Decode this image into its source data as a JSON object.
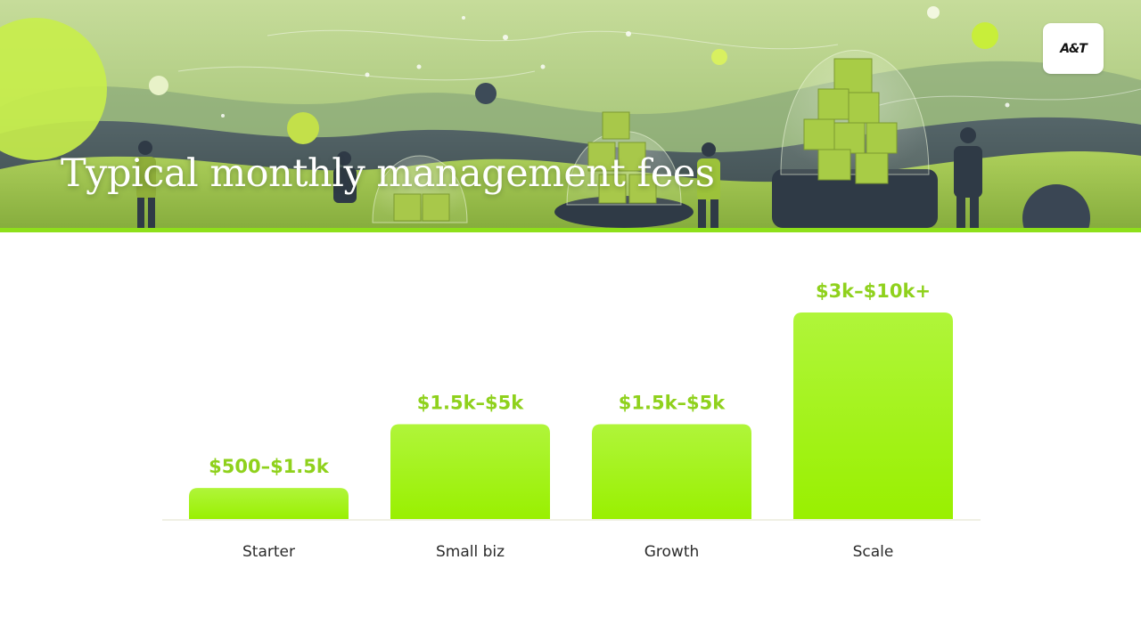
{
  "slide": {
    "title": "Typical monthly management fees",
    "logo_text": "A&T"
  },
  "colors": {
    "accent": "#8ee01a",
    "bar_top": "#b0f53a",
    "bar_bottom": "#99f000",
    "value_text": "#8fd11c"
  },
  "chart_data": {
    "type": "bar",
    "title": "",
    "xlabel": "",
    "ylabel": "",
    "categories": [
      "Starter",
      "Small biz",
      "Growth",
      "Scale"
    ],
    "value_labels": [
      "$500–$1.5k",
      "$1.5k–$5k",
      "$1.5k–$5k",
      "$3k–$10k+"
    ],
    "values": [
      1,
      3,
      3,
      6.5
    ],
    "ylim": [
      0,
      6.5
    ],
    "grid": false,
    "legend": "none"
  }
}
